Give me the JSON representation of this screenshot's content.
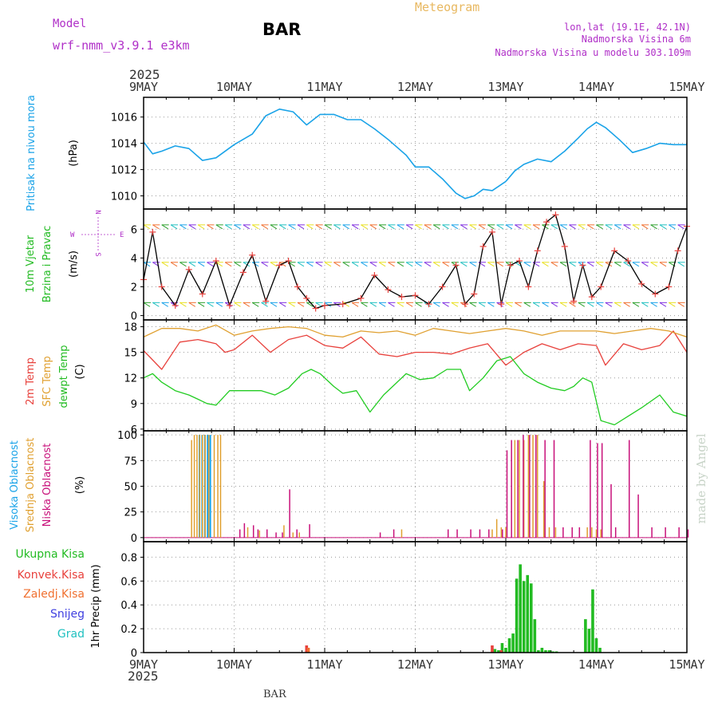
{
  "header": {
    "model_label": "Model",
    "model_name": "wrf-nmm_v3.9.1 e3km",
    "station": "BAR",
    "title": "Meteogram",
    "lonlat": "lon,lat (19.1E, 42.1N)",
    "elev": "Nadmorska Visina 6m",
    "elev_model": "Nadmorska Visina u modelu 303.109m",
    "footer_station": "BAR",
    "credit": "made by Angel"
  },
  "colors": {
    "pressure": "#1aa3e8",
    "wind": "#2ca02c",
    "temp2m": "#e8413c",
    "sfc": "#e0a030",
    "dewpt": "#22cc22",
    "cloud_high": "#1aa3e8",
    "cloud_mid": "#e0a030",
    "cloud_low": "#c8107a",
    "rain_total": "#22bb22",
    "rain_conv": "#e8413c",
    "rain_frozen": "#f07030",
    "snow": "#4040e0",
    "graupel": "#20c0c0",
    "purple": "#b030c8",
    "orange_title": "#e8b860"
  },
  "chart_data": [
    {
      "type": "line",
      "title": "Pritisak na nivou mora",
      "ylabel": "(hPa)",
      "ylim": [
        1009,
        1017.5
      ],
      "yticks": [
        1010,
        1012,
        1014,
        1016
      ],
      "x_days": [
        0,
        0.1,
        0.2,
        0.35,
        0.5,
        0.65,
        0.8,
        1.0,
        1.2,
        1.35,
        1.5,
        1.65,
        1.8,
        1.95,
        2.1,
        2.25,
        2.4,
        2.55,
        2.7,
        2.9,
        3.0,
        3.15,
        3.3,
        3.45,
        3.55,
        3.65,
        3.75,
        3.85,
        4.0,
        4.1,
        4.2,
        4.35,
        4.5,
        4.65,
        4.8,
        4.9,
        5.0,
        5.1,
        5.25,
        5.4,
        5.55,
        5.7,
        5.85,
        6.0
      ],
      "values": [
        1014.1,
        1013.2,
        1013.4,
        1013.8,
        1013.6,
        1012.7,
        1012.9,
        1013.9,
        1014.7,
        1016.1,
        1016.6,
        1016.4,
        1015.4,
        1016.2,
        1016.2,
        1015.8,
        1015.8,
        1015.1,
        1014.3,
        1013.1,
        1012.2,
        1012.2,
        1011.3,
        1010.2,
        1009.8,
        1010.0,
        1010.5,
        1010.4,
        1011.1,
        1011.9,
        1012.4,
        1012.8,
        1012.6,
        1013.4,
        1014.4,
        1015.1,
        1015.6,
        1015.2,
        1014.3,
        1013.3,
        1013.6,
        1014.0,
        1013.9,
        1013.9
      ]
    },
    {
      "type": "line",
      "title": "10m Vjetar Brzina i Pravac",
      "ylabel": "(m/s)",
      "compass": "N S W E",
      "ylim": [
        -0.3,
        7.4
      ],
      "yticks": [
        0,
        2,
        4,
        6
      ],
      "x_days": [
        0,
        0.1,
        0.2,
        0.35,
        0.5,
        0.65,
        0.8,
        0.95,
        1.1,
        1.2,
        1.35,
        1.5,
        1.6,
        1.7,
        1.8,
        1.9,
        2.0,
        2.2,
        2.4,
        2.55,
        2.7,
        2.85,
        3.0,
        3.15,
        3.3,
        3.45,
        3.55,
        3.65,
        3.75,
        3.85,
        3.95,
        4.05,
        4.15,
        4.25,
        4.35,
        4.45,
        4.55,
        4.65,
        4.75,
        4.85,
        4.95,
        5.05,
        5.2,
        5.35,
        5.5,
        5.65,
        5.8,
        5.9,
        6.0
      ],
      "values": [
        2.5,
        5.8,
        2.0,
        0.7,
        3.2,
        1.5,
        3.8,
        0.7,
        3.0,
        4.2,
        1.0,
        3.5,
        3.8,
        2.0,
        1.2,
        0.5,
        0.7,
        0.8,
        1.2,
        2.8,
        1.8,
        1.3,
        1.4,
        0.8,
        2.0,
        3.5,
        0.8,
        1.5,
        4.8,
        5.8,
        0.8,
        3.5,
        3.8,
        2.0,
        4.5,
        6.5,
        7.0,
        4.8,
        1.0,
        3.5,
        1.3,
        2.0,
        4.5,
        3.8,
        2.2,
        1.5,
        2.0,
        4.5,
        6.2
      ]
    },
    {
      "type": "line",
      "title": "2m Temp / SFC Temp / dewpt Temp",
      "ylabel": "(C)",
      "ylim": [
        5.8,
        18.8
      ],
      "yticks": [
        6,
        9,
        12,
        15,
        18
      ],
      "series": [
        {
          "name": "2m Temp",
          "x_days": [
            0,
            0.2,
            0.4,
            0.6,
            0.8,
            0.9,
            1.0,
            1.2,
            1.4,
            1.6,
            1.8,
            2.0,
            2.2,
            2.4,
            2.6,
            2.8,
            3.0,
            3.2,
            3.4,
            3.6,
            3.8,
            4.0,
            4.2,
            4.4,
            4.6,
            4.8,
            5.0,
            5.1,
            5.3,
            5.5,
            5.7,
            5.85,
            6.0
          ],
          "values": [
            15.2,
            13.0,
            16.2,
            16.5,
            16.0,
            15.0,
            15.3,
            17.0,
            15.0,
            16.5,
            17.0,
            15.8,
            15.5,
            16.8,
            14.8,
            14.5,
            15.0,
            15.0,
            14.8,
            15.5,
            16.0,
            13.5,
            15.0,
            16.0,
            15.3,
            16.0,
            15.8,
            13.5,
            16.0,
            15.3,
            15.8,
            17.5,
            15.0
          ]
        },
        {
          "name": "SFC Temp",
          "x_days": [
            0,
            0.2,
            0.4,
            0.6,
            0.8,
            1.0,
            1.2,
            1.4,
            1.6,
            1.8,
            2.0,
            2.2,
            2.4,
            2.6,
            2.8,
            3.0,
            3.2,
            3.4,
            3.6,
            3.8,
            4.0,
            4.2,
            4.4,
            4.6,
            4.8,
            5.0,
            5.2,
            5.4,
            5.6,
            5.8,
            6.0
          ],
          "values": [
            16.8,
            17.8,
            17.8,
            17.5,
            18.2,
            17.0,
            17.5,
            17.8,
            18.0,
            17.8,
            17.0,
            16.8,
            17.5,
            17.3,
            17.5,
            17.0,
            17.8,
            17.5,
            17.2,
            17.5,
            17.8,
            17.5,
            17.0,
            17.5,
            17.5,
            17.5,
            17.2,
            17.5,
            17.8,
            17.5,
            16.8
          ]
        },
        {
          "name": "dewpt Temp",
          "x_days": [
            0,
            0.1,
            0.2,
            0.35,
            0.5,
            0.6,
            0.7,
            0.8,
            0.95,
            1.1,
            1.3,
            1.45,
            1.6,
            1.75,
            1.85,
            1.95,
            2.1,
            2.2,
            2.35,
            2.5,
            2.65,
            2.8,
            2.9,
            3.05,
            3.2,
            3.35,
            3.5,
            3.6,
            3.75,
            3.9,
            4.05,
            4.2,
            4.35,
            4.5,
            4.65,
            4.75,
            4.85,
            4.95,
            5.05,
            5.2,
            5.35,
            5.5,
            5.7,
            5.85,
            6.0
          ],
          "values": [
            12.0,
            12.5,
            11.5,
            10.5,
            10.0,
            9.5,
            9.0,
            8.8,
            10.5,
            10.5,
            10.5,
            10.0,
            10.8,
            12.5,
            13.0,
            12.5,
            11.0,
            10.2,
            10.5,
            8.0,
            10.0,
            11.5,
            12.5,
            11.8,
            12.0,
            13.0,
            13.0,
            10.5,
            12.0,
            14.0,
            14.5,
            12.5,
            11.5,
            10.8,
            10.5,
            11.0,
            12.0,
            11.5,
            7.0,
            6.5,
            7.5,
            8.5,
            10.0,
            8.0,
            7.5
          ]
        }
      ]
    },
    {
      "type": "bar",
      "title": "Visoka / Srednja / Niska Oblacnost",
      "ylabel": "(%)",
      "ylim": [
        -4,
        104
      ],
      "yticks": [
        0,
        25,
        50,
        75,
        100
      ],
      "series": [
        {
          "name": "Visoka Oblacnost",
          "x_days": [
            0.63,
            0.66,
            0.69,
            0.72,
            0.75
          ],
          "values": [
            100,
            100,
            100,
            100,
            100
          ]
        },
        {
          "name": "Srednja Oblacnost",
          "x_days": [
            0.53,
            0.56,
            0.59,
            0.62,
            0.65,
            0.68,
            0.72,
            0.78,
            0.82,
            0.85,
            1.15,
            1.28,
            1.55,
            1.65,
            1.72,
            2.85,
            3.85,
            3.9,
            3.95,
            4.0,
            4.1,
            4.15,
            4.2,
            4.25,
            4.3,
            4.35,
            4.42,
            4.48,
            4.55,
            4.9,
            4.95,
            5.0,
            5.05
          ],
          "values": [
            95,
            100,
            100,
            100,
            100,
            100,
            100,
            100,
            100,
            100,
            10,
            7,
            12,
            5,
            5,
            8,
            8,
            18,
            10,
            10,
            95,
            95,
            95,
            100,
            100,
            100,
            55,
            10,
            10,
            10,
            10,
            8,
            8
          ]
        },
        {
          "name": "Niska Oblacnost",
          "x_days": [
            1.05,
            1.1,
            1.2,
            1.25,
            1.35,
            1.45,
            1.52,
            1.6,
            1.68,
            1.82,
            2.6,
            2.75,
            3.35,
            3.45,
            3.6,
            3.7,
            3.8,
            3.95,
            4.0,
            4.05,
            4.12,
            4.18,
            4.25,
            4.32,
            4.42,
            4.52,
            4.62,
            4.72,
            4.8,
            4.92,
            5.0,
            5.05,
            5.15,
            5.2,
            5.35,
            5.45,
            5.6,
            5.75,
            5.9,
            6.0
          ],
          "values": [
            8,
            14,
            12,
            8,
            8,
            5,
            5,
            47,
            8,
            13,
            5,
            8,
            8,
            8,
            8,
            8,
            8,
            8,
            85,
            95,
            95,
            100,
            100,
            100,
            95,
            95,
            10,
            10,
            10,
            95,
            92,
            92,
            52,
            10,
            95,
            42,
            10,
            10,
            10,
            8
          ]
        }
      ]
    },
    {
      "type": "bar",
      "title": "1hr Precip",
      "ylabel": "(mm)",
      "ylim": [
        0,
        0.93
      ],
      "yticks": [
        0,
        0.2,
        0.4,
        0.6,
        0.8
      ],
      "legend": [
        "Ukupna Kisa",
        "Konvek.Kisa",
        "Zaledj.Kisa",
        "Snijeg",
        "Grad"
      ],
      "series": [
        {
          "name": "Ukupna Kisa",
          "x_days": [
            3.88,
            3.92,
            3.96,
            4.0,
            4.04,
            4.08,
            4.12,
            4.16,
            4.2,
            4.24,
            4.28,
            4.32,
            4.36,
            4.4,
            4.44,
            4.48,
            4.52,
            4.56,
            4.88,
            4.92,
            4.96,
            5.0,
            5.04
          ],
          "values": [
            0.03,
            0.02,
            0.08,
            0.04,
            0.12,
            0.16,
            0.62,
            0.74,
            0.6,
            0.65,
            0.58,
            0.28,
            0.02,
            0.04,
            0.02,
            0.02,
            0.01,
            0.01,
            0.28,
            0.2,
            0.53,
            0.12,
            0.04
          ]
        },
        {
          "name": "Konvek.Kisa",
          "x_days": [
            1.8,
            3.85,
            3.95
          ],
          "values": [
            0.06,
            0.06,
            0.02
          ]
        },
        {
          "name": "Zaledj.Kisa",
          "x_days": [
            1.82
          ],
          "values": [
            0.04
          ]
        }
      ]
    }
  ],
  "axis": {
    "top_year": "2025",
    "bottom_year": "2025",
    "day_labels": [
      "9MAY",
      "10MAY",
      "11MAY",
      "12MAY",
      "13MAY",
      "14MAY",
      "15MAY"
    ]
  },
  "labels": {
    "p1": "Pritisak na nivou mora",
    "p1_unit": "(hPa)",
    "p2a": "10m Vjetar",
    "p2b": "Brzina i Pravac",
    "p2_unit": "(m/s)",
    "p3a": "2m Temp",
    "p3b": "SFC Temp",
    "p3c": "dewpt Temp",
    "p3_unit": "(C)",
    "p4a": "Visoka Oblacnost",
    "p4b": "Srednja Oblacnost",
    "p4c": "Niska Oblacnost",
    "p4_unit": "(%)",
    "p5_unit": "1hr Precip (mm)",
    "compass_n": "N",
    "compass_s": "S",
    "compass_w": "W",
    "compass_e": "E"
  }
}
